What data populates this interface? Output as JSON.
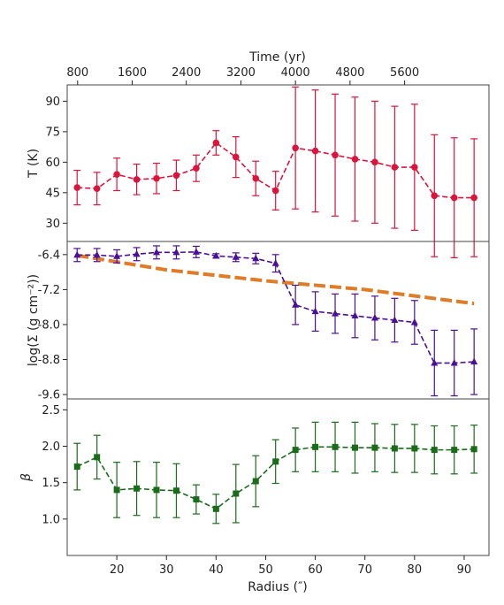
{
  "chart_data": [
    {
      "type": "line",
      "panel": "temperature",
      "ylabel": "T (K)",
      "top_axis_label": "Time (yr)",
      "top_ticks": [
        {
          "label": "800",
          "radius": 12.1
        },
        {
          "label": "1600",
          "radius": 23.1
        },
        {
          "label": "2400",
          "radius": 34.0
        },
        {
          "label": "3200",
          "radius": 45.0
        },
        {
          "label": "4000",
          "radius": 56.0
        },
        {
          "label": "4800",
          "radius": 67.0
        },
        {
          "label": "5600",
          "radius": 78.0
        }
      ],
      "ylim": [
        21,
        98
      ],
      "yticks": [
        "30",
        "45",
        "60",
        "75",
        "90"
      ],
      "color": "#dc143c",
      "marker": "circle",
      "x": [
        12,
        16,
        20,
        24,
        28,
        32,
        36,
        40,
        44,
        48,
        52,
        56,
        60,
        64,
        68,
        72,
        76,
        80,
        84,
        88,
        92
      ],
      "values": [
        47.5,
        47,
        54,
        51.5,
        52,
        53.5,
        57,
        69.5,
        62.5,
        52,
        46,
        67,
        65.5,
        63.5,
        61.5,
        60,
        57.5,
        57.5,
        43.5,
        42.5,
        42.5
      ],
      "err": [
        8.5,
        8,
        8,
        7.5,
        7.5,
        7.5,
        6.5,
        6,
        10,
        8.5,
        9.5,
        30,
        30,
        30,
        30.5,
        30,
        30,
        31,
        30,
        29.5,
        29
      ]
    },
    {
      "type": "line",
      "panel": "surface-density",
      "ylabel": "log(Σ (g cm⁻²))",
      "ylim": [
        -9.7,
        -6.1
      ],
      "yticks": [
        "-6.4",
        "-7.2",
        "-8.0",
        "-8.8",
        "-9.6"
      ],
      "color": "#4b0f96",
      "marker": "triangle",
      "x": [
        12,
        16,
        20,
        24,
        28,
        32,
        36,
        40,
        44,
        48,
        52,
        56,
        60,
        64,
        68,
        72,
        76,
        80,
        84,
        88,
        92
      ],
      "values": [
        -6.41,
        -6.41,
        -6.44,
        -6.39,
        -6.35,
        -6.35,
        -6.34,
        -6.43,
        -6.46,
        -6.49,
        -6.6,
        -7.55,
        -7.7,
        -7.75,
        -7.8,
        -7.85,
        -7.9,
        -7.95,
        -8.88,
        -8.88,
        -8.85
      ],
      "err": [
        0.15,
        0.15,
        0.15,
        0.15,
        0.15,
        0.15,
        0.13,
        0.05,
        0.1,
        0.12,
        0.2,
        0.45,
        0.45,
        0.45,
        0.5,
        0.5,
        0.5,
        0.5,
        0.75,
        0.75,
        0.75
      ],
      "reference_line": {
        "color": "#e07b28",
        "x": [
          12,
          30,
          50,
          70,
          92
        ],
        "values": [
          -6.42,
          -6.75,
          -7.0,
          -7.2,
          -7.52
        ]
      }
    },
    {
      "type": "line",
      "panel": "beta",
      "ylabel": "β",
      "xlabel": "Radius (″)",
      "xlim": [
        10,
        95
      ],
      "xticks": [
        "20",
        "30",
        "40",
        "50",
        "60",
        "70",
        "80",
        "90"
      ],
      "ylim": [
        0.5,
        2.65
      ],
      "yticks": [
        "1.0",
        "1.5",
        "2.0",
        "2.5"
      ],
      "color": "#1a6b1a",
      "marker": "square",
      "x": [
        12,
        16,
        20,
        24,
        28,
        32,
        36,
        40,
        44,
        48,
        52,
        56,
        60,
        64,
        68,
        72,
        76,
        80,
        84,
        88,
        92
      ],
      "values": [
        1.72,
        1.85,
        1.4,
        1.42,
        1.4,
        1.39,
        1.27,
        1.14,
        1.35,
        1.52,
        1.79,
        1.95,
        1.99,
        1.99,
        1.98,
        1.98,
        1.97,
        1.97,
        1.95,
        1.95,
        1.96
      ],
      "err": [
        0.32,
        0.3,
        0.38,
        0.37,
        0.38,
        0.37,
        0.2,
        0.2,
        0.4,
        0.35,
        0.3,
        0.3,
        0.34,
        0.34,
        0.35,
        0.33,
        0.33,
        0.33,
        0.33,
        0.33,
        0.33
      ]
    }
  ]
}
